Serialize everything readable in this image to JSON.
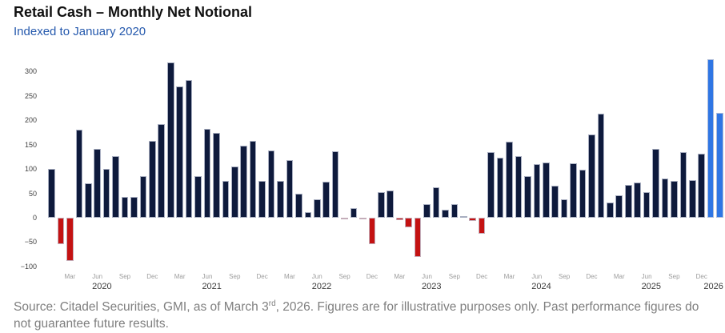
{
  "title": "Retail Cash – Monthly Net Notional",
  "subtitle": "Indexed to January 2020",
  "source": {
    "line1_prefix": "Source: Citadel Securities, GMI, as of March 3",
    "line1_sup": "rd",
    "line1_suffix": ", 2026. Figures are for illustrative purposes only. Past performance figures do",
    "line2": "not guarantee future results."
  },
  "chart_data": {
    "type": "bar",
    "title": "Retail Cash – Monthly Net Notional",
    "subtitle": "Indexed to January 2020",
    "xlabel": "",
    "ylabel": "",
    "ylim": [
      -100,
      335
    ],
    "y_ticks": [
      300,
      250,
      200,
      150,
      100,
      50,
      0,
      -50,
      -100
    ],
    "grid": false,
    "legend": "none",
    "colors": {
      "positive": "#0E1A3C",
      "negative": "#C41212",
      "highlight": "#2F76E4"
    },
    "highlight_note": "Jan 2026 and Feb 2026 bars are highlighted bright blue",
    "series": [
      {
        "name": "Monthly net notional (indexed to Jan 2020)",
        "points": [
          {
            "label": "Jan 2020",
            "value": 100
          },
          {
            "label": "Feb 2020",
            "value": -55
          },
          {
            "label": "Mar 2020",
            "value": -88
          },
          {
            "label": "Apr 2020",
            "value": 180
          },
          {
            "label": "May 2020",
            "value": 70
          },
          {
            "label": "Jun 2020",
            "value": 142
          },
          {
            "label": "Jul 2020",
            "value": 100
          },
          {
            "label": "Aug 2020",
            "value": 126
          },
          {
            "label": "Sep 2020",
            "value": 42
          },
          {
            "label": "Oct 2020",
            "value": 43
          },
          {
            "label": "Nov 2020",
            "value": 86
          },
          {
            "label": "Dec 2020",
            "value": 157
          },
          {
            "label": "Jan 2021",
            "value": 193
          },
          {
            "label": "Feb 2021",
            "value": 318
          },
          {
            "label": "Mar 2021",
            "value": 269
          },
          {
            "label": "Apr 2021",
            "value": 283
          },
          {
            "label": "May 2021",
            "value": 86
          },
          {
            "label": "Jun 2021",
            "value": 182
          },
          {
            "label": "Jul 2021",
            "value": 174
          },
          {
            "label": "Aug 2021",
            "value": 76
          },
          {
            "label": "Sep 2021",
            "value": 105
          },
          {
            "label": "Oct 2021",
            "value": 148
          },
          {
            "label": "Nov 2021",
            "value": 157
          },
          {
            "label": "Dec 2021",
            "value": 75
          },
          {
            "label": "Jan 2022",
            "value": 138
          },
          {
            "label": "Feb 2022",
            "value": 76
          },
          {
            "label": "Mar 2022",
            "value": 118
          },
          {
            "label": "Apr 2022",
            "value": 49
          },
          {
            "label": "May 2022",
            "value": 11
          },
          {
            "label": "Jun 2022",
            "value": 38
          },
          {
            "label": "Jul 2022",
            "value": 74
          },
          {
            "label": "Aug 2022",
            "value": 136
          },
          {
            "label": "Sep 2022",
            "value": -3
          },
          {
            "label": "Oct 2022",
            "value": 20
          },
          {
            "label": "Nov 2022",
            "value": -2
          },
          {
            "label": "Dec 2022",
            "value": -55
          },
          {
            "label": "Jan 2023",
            "value": 52
          },
          {
            "label": "Feb 2023",
            "value": 56
          },
          {
            "label": "Mar 2023",
            "value": -5
          },
          {
            "label": "Apr 2023",
            "value": -20
          },
          {
            "label": "May 2023",
            "value": -80
          },
          {
            "label": "Jun 2023",
            "value": 28
          },
          {
            "label": "Jul 2023",
            "value": 63
          },
          {
            "label": "Aug 2023",
            "value": 17
          },
          {
            "label": "Sep 2023",
            "value": 28
          },
          {
            "label": "Oct 2023",
            "value": 4
          },
          {
            "label": "Nov 2023",
            "value": -7
          },
          {
            "label": "Dec 2023",
            "value": -33
          },
          {
            "label": "Jan 2024",
            "value": 135
          },
          {
            "label": "Feb 2024",
            "value": 123
          },
          {
            "label": "Mar 2024",
            "value": 156
          },
          {
            "label": "Apr 2024",
            "value": 126
          },
          {
            "label": "May 2024",
            "value": 86
          },
          {
            "label": "Jun 2024",
            "value": 110
          },
          {
            "label": "Jul 2024",
            "value": 113
          },
          {
            "label": "Aug 2024",
            "value": 65
          },
          {
            "label": "Sep 2024",
            "value": 38
          },
          {
            "label": "Oct 2024",
            "value": 112
          },
          {
            "label": "Nov 2024",
            "value": 99
          },
          {
            "label": "Dec 2024",
            "value": 171
          },
          {
            "label": "Jan 2025",
            "value": 213
          },
          {
            "label": "Feb 2025",
            "value": 32
          },
          {
            "label": "Mar 2025",
            "value": 46
          },
          {
            "label": "Apr 2025",
            "value": 67
          },
          {
            "label": "May 2025",
            "value": 73
          },
          {
            "label": "Jun 2025",
            "value": 52
          },
          {
            "label": "Jul 2025",
            "value": 142
          },
          {
            "label": "Aug 2025",
            "value": 81
          },
          {
            "label": "Sep 2025",
            "value": 76
          },
          {
            "label": "Oct 2025",
            "value": 135
          },
          {
            "label": "Nov 2025",
            "value": 78
          },
          {
            "label": "Dec 2025",
            "value": 132
          },
          {
            "label": "Jan 2026",
            "value": 325,
            "highlight": true
          },
          {
            "label": "Feb 2026",
            "value": 215,
            "highlight": true
          }
        ]
      }
    ],
    "x_ticks": [
      {
        "label": "Mar",
        "month_index": 2
      },
      {
        "label": "Jun",
        "month_index": 5
      },
      {
        "label": "Sep",
        "month_index": 8
      },
      {
        "label": "Dec",
        "month_index": 11
      },
      {
        "label": "Mar",
        "month_index": 14
      },
      {
        "label": "Jun",
        "month_index": 17
      },
      {
        "label": "Sep",
        "month_index": 20
      },
      {
        "label": "Dec",
        "month_index": 23
      },
      {
        "label": "Mar",
        "month_index": 26
      },
      {
        "label": "Jun",
        "month_index": 29
      },
      {
        "label": "Sep",
        "month_index": 32
      },
      {
        "label": "Dec",
        "month_index": 35
      },
      {
        "label": "Mar",
        "month_index": 38
      },
      {
        "label": "Jun",
        "month_index": 41
      },
      {
        "label": "Sep",
        "month_index": 44
      },
      {
        "label": "Dec",
        "month_index": 47
      },
      {
        "label": "Mar",
        "month_index": 50
      },
      {
        "label": "Jun",
        "month_index": 53
      },
      {
        "label": "Sep",
        "month_index": 56
      },
      {
        "label": "Dec",
        "month_index": 59
      },
      {
        "label": "Mar",
        "month_index": 62
      },
      {
        "label": "Jun",
        "month_index": 65
      },
      {
        "label": "Sep",
        "month_index": 68
      },
      {
        "label": "Dec",
        "month_index": 71
      }
    ],
    "year_labels": [
      {
        "label": "2020",
        "month_pos": 5.5
      },
      {
        "label": "2021",
        "month_pos": 17.5
      },
      {
        "label": "2022",
        "month_pos": 29.5
      },
      {
        "label": "2023",
        "month_pos": 41.5
      },
      {
        "label": "2024",
        "month_pos": 53.5
      },
      {
        "label": "2025",
        "month_pos": 65.5
      },
      {
        "label": "2026",
        "month_pos": 72.3
      }
    ]
  }
}
